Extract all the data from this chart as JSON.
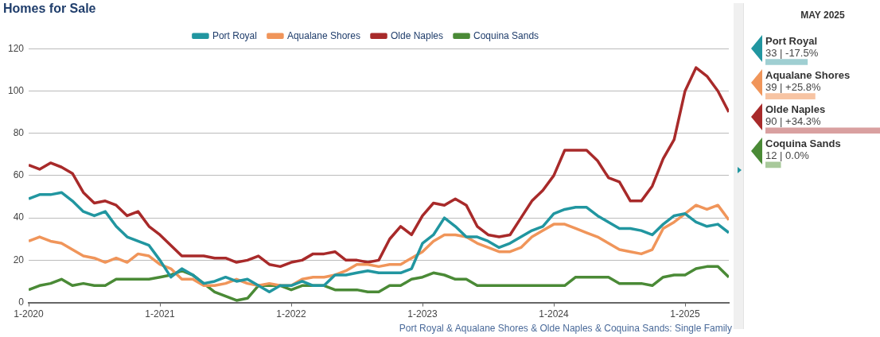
{
  "chart_data": [
    {
      "type": "line",
      "title": "Homes for Sale",
      "legend": "top",
      "grid": "y",
      "marker": "none",
      "x": [
        "2020-01",
        "2020-02",
        "2020-03",
        "2020-04",
        "2020-05",
        "2020-06",
        "2020-07",
        "2020-08",
        "2020-09",
        "2020-10",
        "2020-11",
        "2020-12",
        "2021-01",
        "2021-02",
        "2021-03",
        "2021-04",
        "2021-05",
        "2021-06",
        "2021-07",
        "2021-08",
        "2021-09",
        "2021-10",
        "2021-11",
        "2021-12",
        "2022-01",
        "2022-02",
        "2022-03",
        "2022-04",
        "2022-05",
        "2022-06",
        "2022-07",
        "2022-08",
        "2022-09",
        "2022-10",
        "2022-11",
        "2022-12",
        "2023-01",
        "2023-02",
        "2023-03",
        "2023-04",
        "2023-05",
        "2023-06",
        "2023-07",
        "2023-08",
        "2023-09",
        "2023-10",
        "2023-11",
        "2023-12",
        "2024-01",
        "2024-02",
        "2024-03",
        "2024-04",
        "2024-05",
        "2024-06",
        "2024-07",
        "2024-08",
        "2024-09",
        "2024-10",
        "2024-11",
        "2024-12",
        "2025-01",
        "2025-02",
        "2025-03",
        "2025-04",
        "2025-05"
      ],
      "series": [
        {
          "name": "Port Royal",
          "color": "#2196a0",
          "values": [
            49,
            51,
            51,
            52,
            48,
            43,
            41,
            43,
            36,
            31,
            29,
            27,
            20,
            12,
            16,
            13,
            9,
            10,
            12,
            10,
            11,
            8,
            5,
            8,
            8,
            10,
            8,
            8,
            13,
            13,
            14,
            15,
            14,
            14,
            14,
            16,
            28,
            32,
            40,
            36,
            31,
            31,
            29,
            26,
            28,
            31,
            34,
            36,
            42,
            44,
            45,
            45,
            41,
            38,
            35,
            35,
            34,
            32,
            37,
            41,
            42,
            38,
            36,
            37,
            33
          ]
        },
        {
          "name": "Aqualane Shores",
          "color": "#f0955a",
          "values": [
            29,
            31,
            29,
            28,
            25,
            22,
            21,
            19,
            21,
            19,
            23,
            22,
            18,
            16,
            11,
            11,
            8,
            8,
            9,
            11,
            9,
            8,
            9,
            8,
            8,
            11,
            12,
            12,
            13,
            15,
            18,
            18,
            17,
            18,
            18,
            21,
            24,
            29,
            32,
            32,
            31,
            28,
            26,
            24,
            24,
            26,
            31,
            34,
            37,
            37,
            35,
            33,
            31,
            28,
            25,
            24,
            23,
            25,
            35,
            38,
            42,
            46,
            44,
            46,
            39
          ]
        },
        {
          "name": "Olde Naples",
          "color": "#a82a2a",
          "values": [
            65,
            63,
            66,
            64,
            61,
            52,
            47,
            48,
            46,
            41,
            43,
            36,
            32,
            27,
            22,
            22,
            22,
            21,
            21,
            19,
            20,
            22,
            18,
            17,
            19,
            20,
            23,
            23,
            24,
            20,
            20,
            19,
            20,
            30,
            36,
            32,
            41,
            47,
            46,
            49,
            46,
            36,
            32,
            31,
            32,
            40,
            48,
            53,
            60,
            72,
            72,
            72,
            67,
            59,
            57,
            48,
            48,
            55,
            68,
            77,
            100,
            111,
            107,
            100,
            90
          ]
        },
        {
          "name": "Coquina Sands",
          "color": "#4a8a36",
          "values": [
            6,
            8,
            9,
            11,
            8,
            9,
            8,
            8,
            11,
            11,
            11,
            11,
            12,
            13,
            15,
            13,
            9,
            5,
            3,
            1,
            2,
            8,
            8,
            8,
            6,
            8,
            8,
            8,
            6,
            6,
            6,
            5,
            5,
            8,
            8,
            11,
            12,
            14,
            13,
            11,
            11,
            8,
            8,
            8,
            8,
            8,
            8,
            8,
            8,
            8,
            12,
            12,
            12,
            12,
            9,
            9,
            9,
            8,
            12,
            13,
            13,
            16,
            17,
            17,
            12
          ]
        }
      ],
      "xlim": [
        "2020-01",
        "2025-05"
      ],
      "xticks": [
        {
          "value": "2020-01",
          "label": "1-2020"
        },
        {
          "value": "2021-01",
          "label": "1-2021"
        },
        {
          "value": "2022-01",
          "label": "1-2022"
        },
        {
          "value": "2023-01",
          "label": "1-2023"
        },
        {
          "value": "2024-01",
          "label": "1-2024"
        },
        {
          "value": "2025-01",
          "label": "1-2025"
        }
      ],
      "ylim": [
        0,
        120
      ],
      "yticks": [
        0,
        20,
        40,
        60,
        80,
        100,
        120
      ],
      "annotations": [
        "Port Royal & Aqualane Shores & Olde Naples & Coquina Sands: Single Family"
      ]
    },
    {
      "type": "bar",
      "orientation": "horizontal",
      "title": "MAY 2025",
      "categories": [
        "Port Royal",
        "Aqualane Shores",
        "Olde Naples",
        "Coquina Sands"
      ],
      "values": [
        33,
        39,
        90,
        12
      ],
      "colors": [
        "#9fcfd2",
        "#f7c4a3",
        "#d9a0a0",
        "#a8c99b"
      ],
      "value_labels": [
        "33 | -17.5%",
        "39 | +25.8%",
        "90 | +34.3%",
        "12 | 0.0%"
      ]
    }
  ]
}
